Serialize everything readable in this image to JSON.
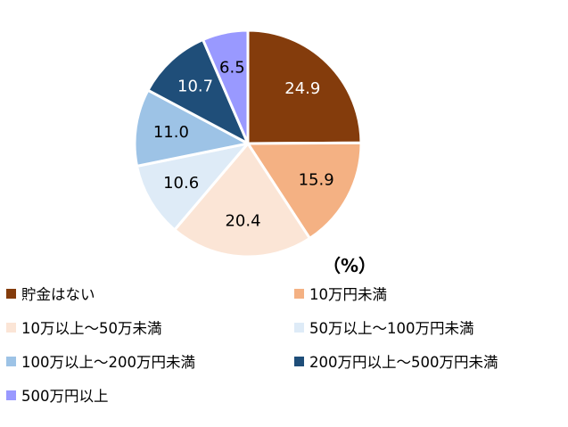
{
  "chart_data": {
    "type": "pie",
    "title": "",
    "unit": "（%）",
    "categories": [
      "貯金はない",
      "10万円未満",
      "10万以上～50万未満",
      "50万以上～100万円未満",
      "100万以上～200万円未満",
      "200万円以上～500万円未満",
      "500万円以上"
    ],
    "values": [
      24.9,
      15.9,
      20.4,
      10.6,
      11.0,
      10.7,
      6.5
    ],
    "value_labels": [
      "24.9",
      "15.9",
      "20.4",
      "10.6",
      "11.0",
      "10.7",
      "6.5"
    ],
    "colors": [
      "#843c0c",
      "#f4b183",
      "#fbe5d6",
      "#deebf7",
      "#9dc3e6",
      "#1f4e79",
      "#9999ff"
    ],
    "label_colors": [
      "#ffffff",
      "#000000",
      "#000000",
      "#000000",
      "#000000",
      "#ffffff",
      "#000000"
    ],
    "legend_position": "bottom",
    "start_angle": "12 o'clock",
    "direction": "clockwise"
  }
}
